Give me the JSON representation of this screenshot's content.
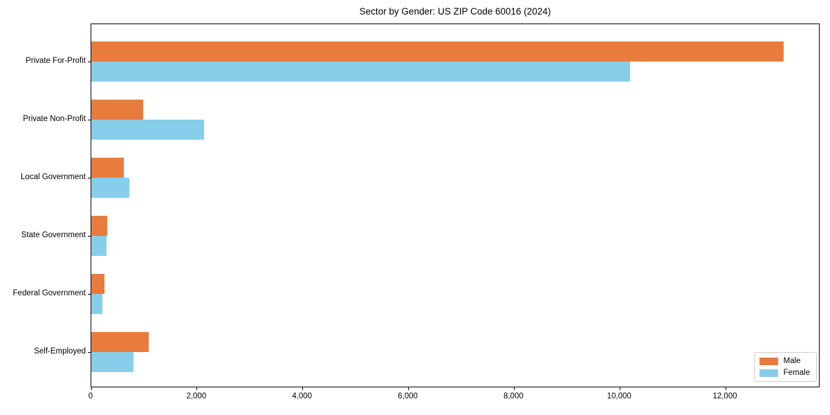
{
  "figure": {
    "background": "#ffffff",
    "axis_color": "#000000"
  },
  "chart_data": {
    "type": "bar",
    "orientation": "horizontal",
    "title": "Sector by Gender: US ZIP Code 60016 (2024)",
    "categories": [
      "Private For-Profit",
      "Private Non-Profit",
      "Local Government",
      "State Government",
      "Federal Government",
      "Self-Employed"
    ],
    "series": [
      {
        "name": "Male",
        "color": "#e97c3d",
        "values": [
          13100,
          980,
          610,
          300,
          250,
          1080
        ]
      },
      {
        "name": "Female",
        "color": "#87ceeb",
        "values": [
          10200,
          2130,
          720,
          290,
          210,
          800
        ]
      }
    ],
    "xlabel": "",
    "ylabel": "",
    "xlim": [
      0,
      13766
    ],
    "x_ticks": [
      0,
      2000,
      4000,
      6000,
      8000,
      10000,
      12000
    ],
    "x_tick_labels": [
      "0",
      "2,000",
      "4,000",
      "6,000",
      "8,000",
      "10,000",
      "12,000"
    ],
    "grid": false,
    "legend": {
      "position": "lower-right",
      "entries": [
        "Male",
        "Female"
      ]
    }
  }
}
